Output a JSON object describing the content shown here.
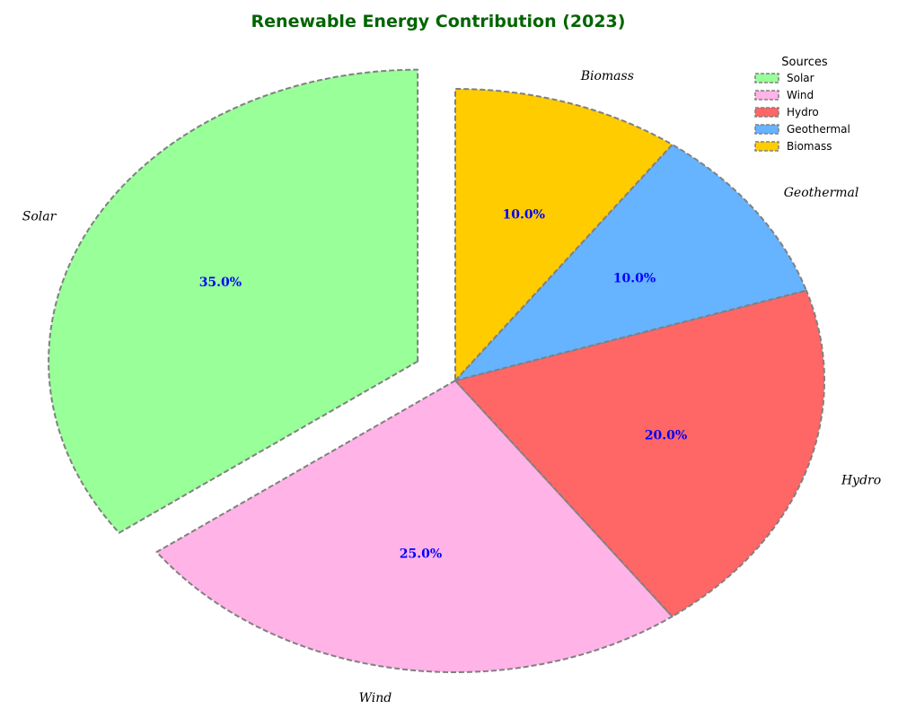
{
  "chart_data": {
    "type": "pie",
    "title": "Renewable Energy Contribution (2023)",
    "categories": [
      "Solar",
      "Wind",
      "Hydro",
      "Geothermal",
      "Biomass"
    ],
    "values": [
      35.0,
      25.0,
      20.0,
      10.0,
      10.0
    ],
    "percent_labels": [
      "35.0%",
      "25.0%",
      "20.0%",
      "10.0%",
      "10.0%"
    ],
    "colors": [
      "#99ff99",
      "#ffb3e6",
      "#ff6666",
      "#66b3ff",
      "#ffcc00"
    ],
    "exploded": [
      "Solar"
    ],
    "start_angle_deg": 90,
    "direction": "counterclockwise",
    "legend": {
      "title": "Sources",
      "entries": [
        "Solar",
        "Wind",
        "Hydro",
        "Geothermal",
        "Biomass"
      ],
      "placement": "top-right"
    },
    "style": {
      "title_color": "#006400",
      "percent_color": "#0000ff",
      "edge_color": "#808080",
      "edge_style": "dashed"
    }
  }
}
